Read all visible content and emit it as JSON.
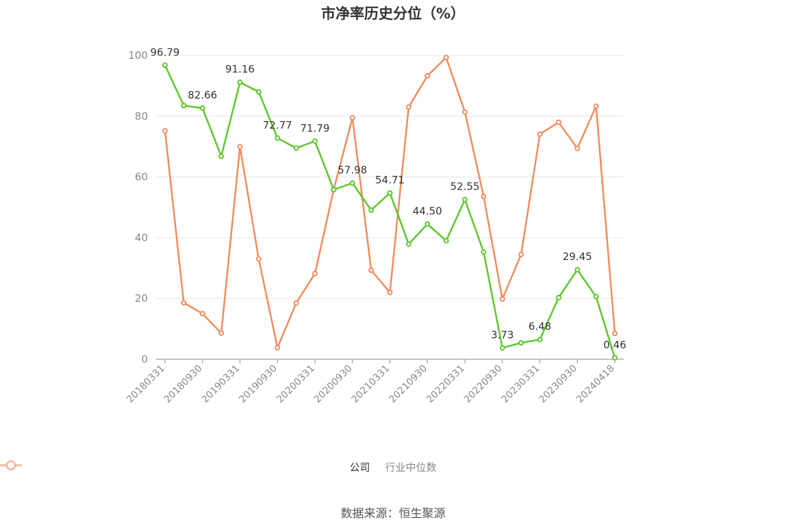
{
  "title": "市净率历史分位（%）",
  "source": "数据来源：恒生聚源",
  "colors": {
    "company": "#5cc72c",
    "industry": "#f08c5c",
    "industry_legend": "#f5b6a0",
    "grid": "#e6e6e6",
    "axis": "#888888"
  },
  "chart_data": {
    "type": "line",
    "ylim": [
      0,
      100
    ],
    "yticks": [
      0,
      20,
      40,
      60,
      80,
      100
    ],
    "x_tick_labels": [
      "20180331",
      "20180930",
      "20190331",
      "20190930",
      "20200331",
      "20200930",
      "20210331",
      "20210930",
      "20220331",
      "20220930",
      "20230331",
      "20230930",
      "20240418"
    ],
    "x_tick_every": 2,
    "grid": true,
    "legend_position": "bottom",
    "series": [
      {
        "name": "公司",
        "values": [
          96.79,
          83.5,
          82.66,
          66.8,
          91.16,
          88.0,
          72.77,
          69.5,
          71.79,
          55.8,
          57.98,
          49.1,
          54.71,
          37.9,
          44.5,
          39.0,
          52.55,
          35.3,
          3.73,
          5.4,
          6.48,
          20.3,
          29.45,
          20.6,
          0.46
        ],
        "labels": {
          "0": "96.79",
          "2": "82.66",
          "4": "91.16",
          "6": "72.77",
          "8": "71.79",
          "10": "57.98",
          "12": "54.71",
          "14": "44.50",
          "16": "52.55",
          "18": "3.73",
          "20": "6.48",
          "22": "29.45",
          "24": "0.46"
        }
      },
      {
        "name": "行业中位数",
        "values": [
          75.2,
          18.6,
          15.0,
          8.6,
          70.0,
          33.0,
          3.8,
          18.5,
          28.2,
          55.8,
          79.5,
          29.3,
          22.0,
          83.0,
          93.3,
          99.3,
          81.4,
          53.6,
          19.8,
          34.5,
          74.1,
          78.0,
          69.4,
          83.3,
          8.5
        ]
      }
    ]
  }
}
